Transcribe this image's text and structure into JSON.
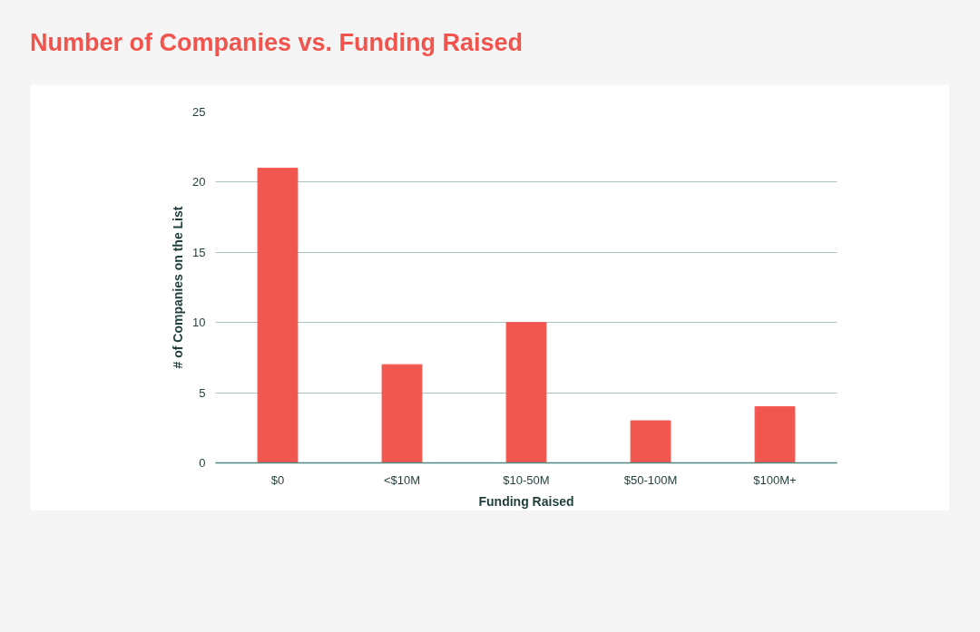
{
  "chart_data": {
    "type": "bar",
    "title": "Number of Companies vs. Funding Raised",
    "xlabel": "Funding Raised",
    "ylabel": "# of Companies on the List",
    "categories": [
      "$0",
      "<$10M",
      "$10-50M",
      "$50-100M",
      "$100M+"
    ],
    "values": [
      21,
      7,
      10,
      3,
      4
    ],
    "color": "#f2574f",
    "ylim": [
      0,
      25
    ],
    "yticks": [
      0,
      5,
      10,
      15,
      20,
      25
    ],
    "grid": "y"
  }
}
